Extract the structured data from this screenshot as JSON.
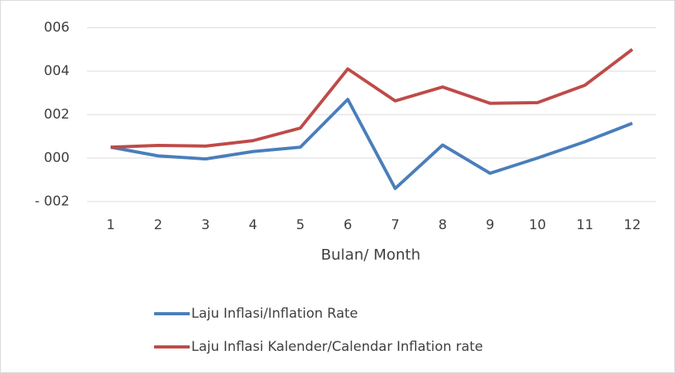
{
  "chart_data": {
    "type": "line",
    "x_label": "Bulan/ Month",
    "categories": [
      "1",
      "2",
      "3",
      "4",
      "5",
      "6",
      "7",
      "8",
      "9",
      "10",
      "11",
      "12"
    ],
    "series": [
      {
        "name": "Laju Inflasi/Inflation Rate",
        "color": "#4a7ebb",
        "values": [
          0.5,
          0.1,
          -0.04,
          0.3,
          0.5,
          2.7,
          -1.4,
          0.6,
          -0.7,
          0,
          0.75,
          1.6
        ]
      },
      {
        "name": "Laju Inflasi Kalender/Calendar Inflation rate",
        "color": "#be4b48",
        "values": [
          0.5,
          0.58,
          0.55,
          0.8,
          1.38,
          4.1,
          2.63,
          3.27,
          2.52,
          2.55,
          3.35,
          5.0
        ]
      }
    ],
    "ylim": [
      -2,
      6
    ],
    "yticks": [
      {
        "value": 6,
        "label": "006"
      },
      {
        "value": 4,
        "label": "004"
      },
      {
        "value": 2,
        "label": "002"
      },
      {
        "value": 0,
        "label": "000"
      },
      {
        "value": -2,
        "label": "- 002"
      }
    ],
    "grid": true,
    "legend": "bottom"
  }
}
